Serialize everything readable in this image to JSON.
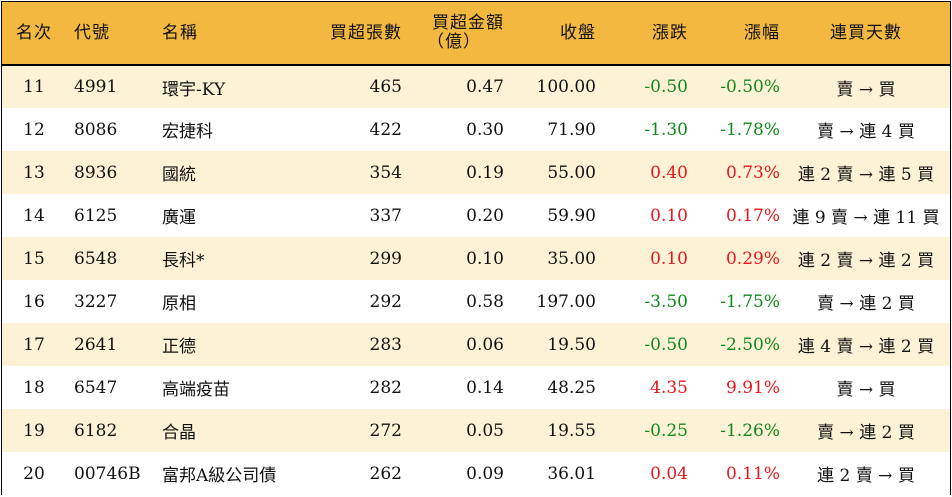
{
  "headers": {
    "rank": "名次",
    "code": "代號",
    "name": "名稱",
    "volume": "買超張數",
    "amount_line1": "買超金額",
    "amount_line2": "（億）",
    "close": "收盤",
    "change": "漲跌",
    "change_pct": "漲幅",
    "days": "連買天數"
  },
  "colors": {
    "header_bg": "#f3b83f",
    "stripe": "#fef2d6",
    "up": "#e8171d",
    "down": "#11891c"
  },
  "rows": [
    {
      "rank": "11",
      "code": "4991",
      "name": "環宇-KY",
      "volume": "465",
      "amount": "0.47",
      "close": "100.00",
      "change": "-0.50",
      "pct": "-0.50%",
      "days": "賣 → 買",
      "dir": "down"
    },
    {
      "rank": "12",
      "code": "8086",
      "name": "宏捷科",
      "volume": "422",
      "amount": "0.30",
      "close": "71.90",
      "change": "-1.30",
      "pct": "-1.78%",
      "days": "賣 → 連 4 買",
      "dir": "down"
    },
    {
      "rank": "13",
      "code": "8936",
      "name": "國統",
      "volume": "354",
      "amount": "0.19",
      "close": "55.00",
      "change": "0.40",
      "pct": "0.73%",
      "days": "連 2 賣 → 連 5 買",
      "dir": "up"
    },
    {
      "rank": "14",
      "code": "6125",
      "name": "廣運",
      "volume": "337",
      "amount": "0.20",
      "close": "59.90",
      "change": "0.10",
      "pct": "0.17%",
      "days": "連 9 賣 → 連 11 買",
      "dir": "up"
    },
    {
      "rank": "15",
      "code": "6548",
      "name": "長科*",
      "volume": "299",
      "amount": "0.10",
      "close": "35.00",
      "change": "0.10",
      "pct": "0.29%",
      "days": "連 2 賣 → 連 2 買",
      "dir": "up"
    },
    {
      "rank": "16",
      "code": "3227",
      "name": "原相",
      "volume": "292",
      "amount": "0.58",
      "close": "197.00",
      "change": "-3.50",
      "pct": "-1.75%",
      "days": "賣 → 連 2 買",
      "dir": "down"
    },
    {
      "rank": "17",
      "code": "2641",
      "name": "正德",
      "volume": "283",
      "amount": "0.06",
      "close": "19.50",
      "change": "-0.50",
      "pct": "-2.50%",
      "days": "連 4 賣 → 連 2 買",
      "dir": "down"
    },
    {
      "rank": "18",
      "code": "6547",
      "name": "高端疫苗",
      "volume": "282",
      "amount": "0.14",
      "close": "48.25",
      "change": "4.35",
      "pct": "9.91%",
      "days": "賣 → 買",
      "dir": "up"
    },
    {
      "rank": "19",
      "code": "6182",
      "name": "合晶",
      "volume": "272",
      "amount": "0.05",
      "close": "19.55",
      "change": "-0.25",
      "pct": "-1.26%",
      "days": "賣 → 連 2 買",
      "dir": "down"
    },
    {
      "rank": "20",
      "code": "00746B",
      "name": "富邦A級公司債",
      "volume": "262",
      "amount": "0.09",
      "close": "36.01",
      "change": "0.04",
      "pct": "0.11%",
      "days": "連 2 賣 → 買",
      "dir": "up"
    }
  ]
}
